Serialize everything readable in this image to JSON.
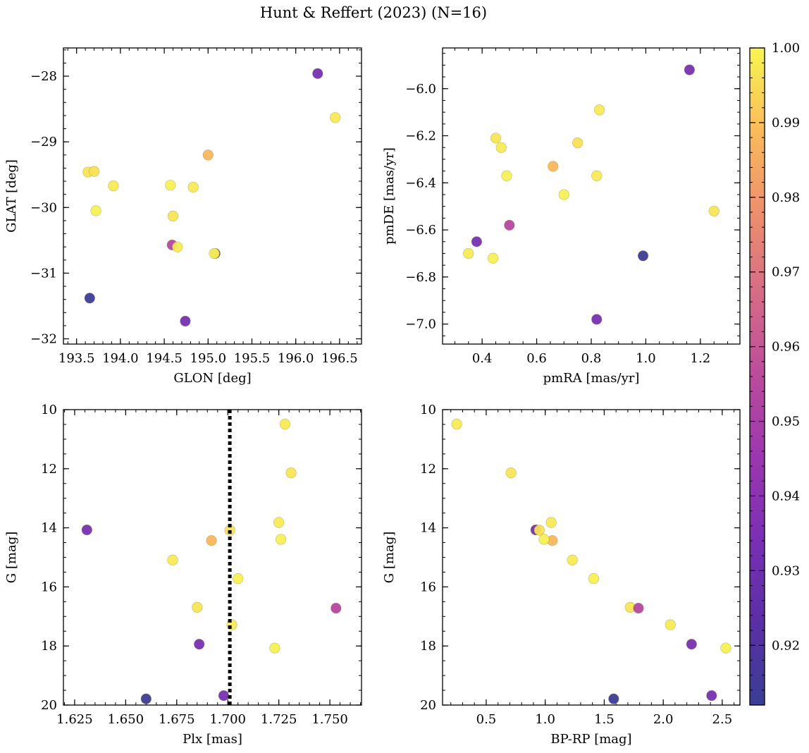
{
  "title": "Hunt & Reffert (2023) (N=16)",
  "colorbar": {
    "min": 0.912,
    "max": 1.0,
    "ticks": [
      0.92,
      0.93,
      0.94,
      0.95,
      0.96,
      0.97,
      0.98,
      0.99,
      1.0
    ],
    "tick_labels": [
      "0.92",
      "0.93",
      "0.94",
      "0.95",
      "0.96",
      "0.97",
      "0.98",
      "0.99",
      "1.00"
    ],
    "colormap": "plasma"
  },
  "stars": {
    "glon": [
      196.25,
      196.45,
      193.63,
      193.7,
      193.92,
      195.0,
      194.57,
      194.83,
      193.72,
      194.6,
      194.59,
      194.65,
      195.08,
      195.07,
      193.65,
      194.74
    ],
    "glat": [
      -27.96,
      -28.63,
      -29.46,
      -29.45,
      -29.67,
      -29.2,
      -29.66,
      -29.69,
      -30.05,
      -30.13,
      -30.57,
      -30.6,
      -30.7,
      -30.7,
      -31.38,
      -31.73
    ],
    "pmra": [
      1.16,
      0.83,
      0.45,
      0.75,
      0.47,
      0.66,
      0.49,
      0.82,
      0.7,
      1.25,
      0.5,
      0.35,
      0.38,
      0.44,
      0.99,
      0.82
    ],
    "pmde": [
      -5.92,
      -6.09,
      -6.21,
      -6.23,
      -6.25,
      -6.33,
      -6.37,
      -6.37,
      -6.45,
      -6.52,
      -6.58,
      -6.7,
      -6.65,
      -6.72,
      -6.71,
      -6.98
    ],
    "plx": [
      1.631,
      1.728,
      1.731,
      1.701,
      1.725,
      1.692,
      1.726,
      1.673,
      1.705,
      1.685,
      1.753,
      1.702,
      1.686,
      1.723,
      1.66,
      1.698
    ],
    "g": [
      14.07,
      10.49,
      12.14,
      14.08,
      13.82,
      14.43,
      14.39,
      15.09,
      15.72,
      16.69,
      16.72,
      17.28,
      17.94,
      18.07,
      19.79,
      19.68
    ],
    "bprp": [
      0.92,
      0.25,
      0.71,
      0.95,
      1.05,
      1.06,
      0.99,
      1.23,
      1.41,
      1.72,
      1.79,
      2.06,
      2.24,
      2.53,
      1.58,
      2.41
    ],
    "prob": [
      0.933,
      0.998,
      0.997,
      0.996,
      0.998,
      0.988,
      0.999,
      0.998,
      0.999,
      0.997,
      0.954,
      0.998,
      0.933,
      0.999,
      0.913,
      0.933
    ]
  },
  "chart_data": [
    {
      "type": "scatter",
      "x_field": "glon",
      "y_field": "glat",
      "xlabel": "GLON [deg]",
      "ylabel": "GLAT [deg]",
      "xlim": [
        193.35,
        196.75
      ],
      "ylim": [
        -32.08,
        -27.57
      ],
      "y_inverted": false,
      "xticks": [
        193.5,
        194.0,
        194.5,
        195.0,
        195.5,
        196.0,
        196.5
      ],
      "xtick_labels": [
        "193.5",
        "194.0",
        "194.5",
        "195.0",
        "195.5",
        "196.0",
        "196.5"
      ],
      "xminor": 0.1,
      "yticks": [
        -28,
        -29,
        -30,
        -31,
        -32
      ],
      "ytick_labels": [
        "−28",
        "−29",
        "−30",
        "−31",
        "−32"
      ],
      "yminor": 0.2
    },
    {
      "type": "scatter",
      "x_field": "pmra",
      "y_field": "pmde",
      "xlabel": "pmRA [mas/yr]",
      "ylabel": "pmDE [mas/yr]",
      "xlim": [
        0.255,
        1.345
      ],
      "ylim": [
        -7.085,
        -5.827
      ],
      "y_inverted": false,
      "xticks": [
        0.4,
        0.6,
        0.8,
        1.0,
        1.2
      ],
      "xtick_labels": [
        "0.4",
        "0.6",
        "0.8",
        "1.0",
        "1.2"
      ],
      "xminor": 0.05,
      "yticks": [
        -6.0,
        -6.2,
        -6.4,
        -6.6,
        -6.8,
        -7.0
      ],
      "ytick_labels": [
        "−6.0",
        "−6.2",
        "−6.4",
        "−6.6",
        "−6.8",
        "−7.0"
      ],
      "yminor": 0.05
    },
    {
      "type": "scatter",
      "x_field": "plx",
      "y_field": "g",
      "xlabel": "Plx [mas]",
      "ylabel": "G [mag]",
      "xlim": [
        1.6195,
        1.7655
      ],
      "ylim": [
        10.0,
        20.0
      ],
      "y_inverted": true,
      "xticks": [
        1.625,
        1.65,
        1.675,
        1.7,
        1.725,
        1.75
      ],
      "xtick_labels": [
        "1.625",
        "1.650",
        "1.675",
        "1.700",
        "1.725",
        "1.750"
      ],
      "xminor": 0.005,
      "yticks": [
        10,
        12,
        14,
        16,
        18,
        20
      ],
      "ytick_labels": [
        "10",
        "12",
        "14",
        "16",
        "18",
        "20"
      ],
      "yminor": 0.5,
      "vline": {
        "x": 1.701,
        "style": "dotted"
      }
    },
    {
      "type": "scatter",
      "x_field": "bprp",
      "y_field": "g",
      "xlabel": "BP-RP [mag]",
      "ylabel": "G [mag]",
      "xlim": [
        0.13,
        2.65
      ],
      "ylim": [
        10.0,
        20.0
      ],
      "y_inverted": true,
      "xticks": [
        0.5,
        1.0,
        1.5,
        2.0,
        2.5
      ],
      "xtick_labels": [
        "0.5",
        "1.0",
        "1.5",
        "2.0",
        "2.5"
      ],
      "xminor": 0.1,
      "yticks": [
        10,
        12,
        14,
        16,
        18,
        20
      ],
      "ytick_labels": [
        "10",
        "12",
        "14",
        "16",
        "18",
        "20"
      ],
      "yminor": 0.5
    }
  ]
}
